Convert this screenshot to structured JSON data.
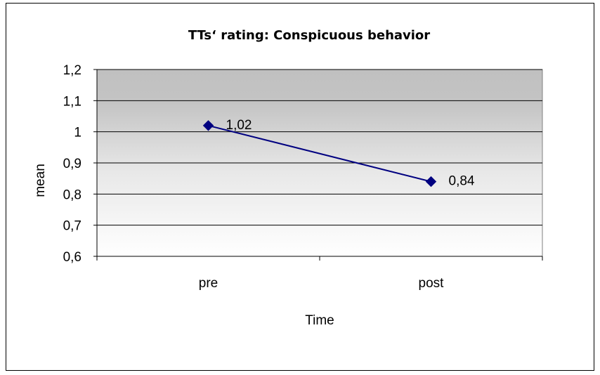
{
  "chart_data": {
    "type": "line",
    "title": "TTs‘ rating: Conspicuous behavior",
    "xlabel": "Time",
    "ylabel": "mean",
    "categories": [
      "pre",
      "post"
    ],
    "series": [
      {
        "values": [
          1.02,
          0.84
        ],
        "data_labels": [
          "1,02",
          "0,84"
        ],
        "color": "#000080"
      }
    ],
    "ylim": [
      0.6,
      1.2
    ],
    "yticks": [
      0.6,
      0.7,
      0.8,
      0.9,
      1.0,
      1.1,
      1.2
    ],
    "ytick_labels": [
      "0,6",
      "0,7",
      "0,8",
      "0,9",
      "1",
      "1,1",
      "1,2"
    ],
    "grid": true,
    "legend": "none",
    "plot_background": "gradient-gray-to-white"
  }
}
